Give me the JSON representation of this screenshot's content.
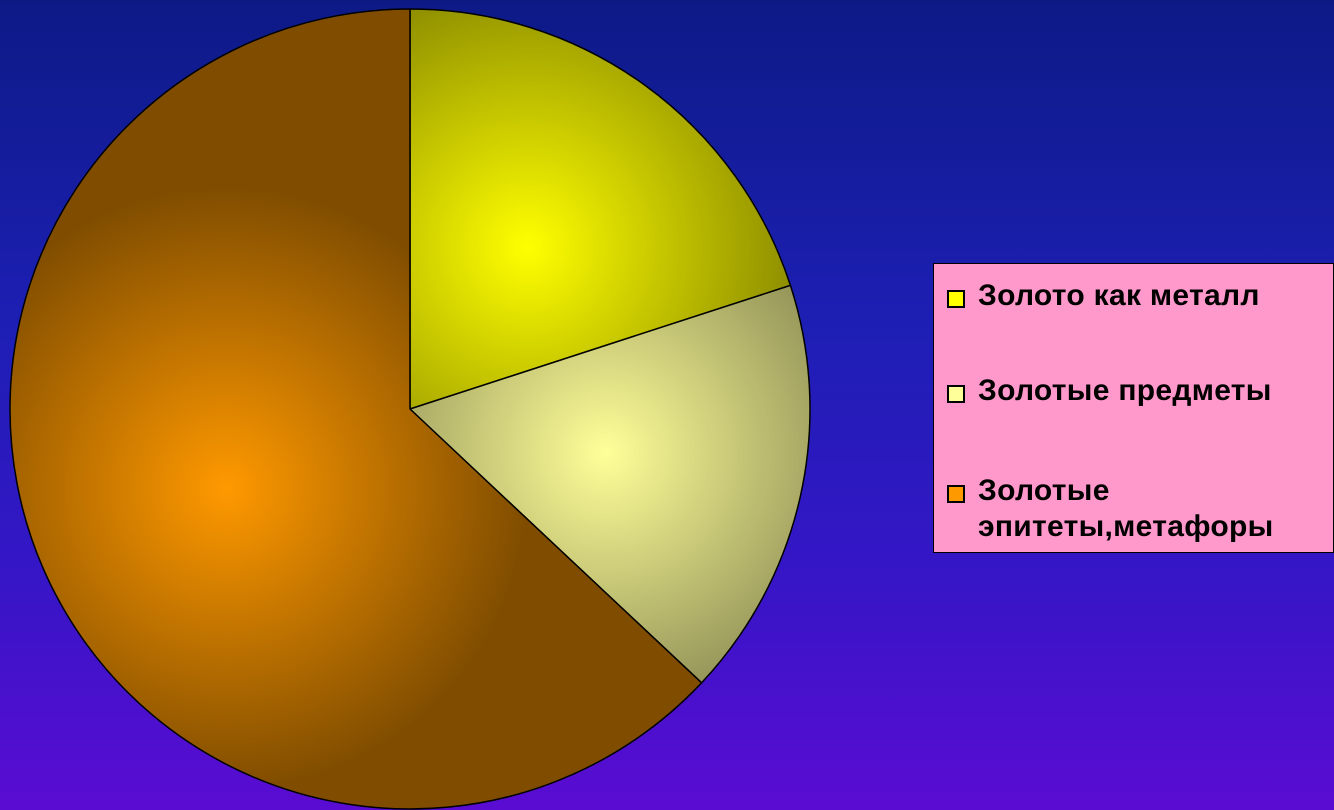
{
  "chart_data": {
    "type": "pie",
    "title": "",
    "start_angle_deg": 0,
    "direction": "clockwise",
    "slices": [
      {
        "label": "Золото как металл",
        "value": 20,
        "color": "#ffff00"
      },
      {
        "label": "Золотые предметы",
        "value": 17,
        "color": "#ffff99"
      },
      {
        "label": "Золотые\nэпитеты,метафоры",
        "value": 63,
        "color": "#ff9900"
      }
    ],
    "legend_position": "right"
  },
  "colors": {
    "background_top": "#0d1a86",
    "background_bottom": "#5a0cd2",
    "legend_background": "#ff99cc"
  }
}
